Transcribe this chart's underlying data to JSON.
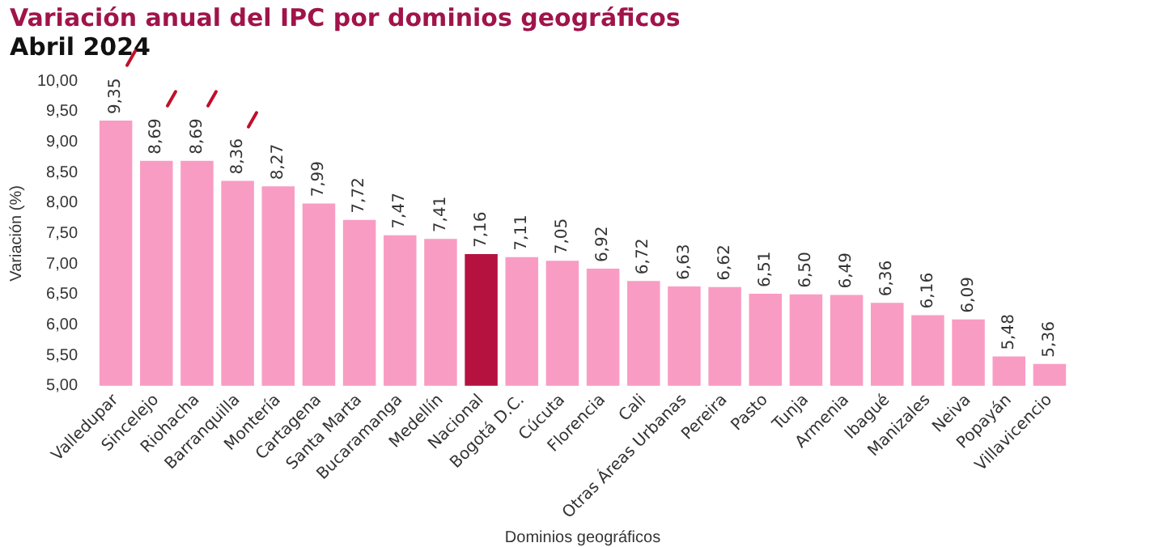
{
  "chart_data": {
    "type": "bar",
    "title": "Variación anual del IPC por dominios geográficos",
    "subtitle": "Abril 2024",
    "xlabel": "Dominios geográficos",
    "ylabel": "Variación (%)",
    "categories": [
      "Valledupar",
      "Sincelejo",
      "Riohacha",
      "Barranquilla",
      "Montería",
      "Cartagena",
      "Santa Marta",
      "Bucaramanga",
      "Medellín",
      "Nacional",
      "Bogotá D.C.",
      "Cúcuta",
      "Florencia",
      "Cali",
      "Otras Áreas Urbanas",
      "Pereira",
      "Pasto",
      "Tunja",
      "Armenia",
      "Ibagué",
      "Manizales",
      "Neiva",
      "Popayán",
      "Villavicencio"
    ],
    "values": [
      9.35,
      8.69,
      8.69,
      8.36,
      8.27,
      7.99,
      7.72,
      7.47,
      7.41,
      7.16,
      7.11,
      7.05,
      6.92,
      6.72,
      6.63,
      6.62,
      6.51,
      6.5,
      6.49,
      6.36,
      6.16,
      6.09,
      5.48,
      5.36
    ],
    "colors": [
      "#f99cc4",
      "#f99cc4",
      "#f99cc4",
      "#f99cc4",
      "#f99cc4",
      "#f99cc4",
      "#f99cc4",
      "#f99cc4",
      "#f99cc4",
      "#b5123f",
      "#f99cc4",
      "#f99cc4",
      "#f99cc4",
      "#f99cc4",
      "#f99cc4",
      "#f99cc4",
      "#f99cc4",
      "#f99cc4",
      "#f99cc4",
      "#f99cc4",
      "#f99cc4",
      "#f99cc4",
      "#f99cc4",
      "#f99cc4"
    ],
    "ylim": [
      5,
      10
    ],
    "yticks": [
      {
        "value": 5,
        "label": "5,00"
      },
      {
        "value": 5.5,
        "label": "5,50"
      },
      {
        "value": 6,
        "label": "6,00"
      },
      {
        "value": 6.5,
        "label": "6,50"
      },
      {
        "value": 7,
        "label": "7,00"
      },
      {
        "value": 7.5,
        "label": "7,50"
      },
      {
        "value": 8,
        "label": "8,00"
      },
      {
        "value": 8.5,
        "label": "8,50"
      },
      {
        "value": 9,
        "label": "9,00"
      },
      {
        "value": 9.5,
        "label": "9,50"
      },
      {
        "value": 10,
        "label": "10,00"
      }
    ],
    "value_labels": [
      "9,35",
      "8,69",
      "8,69",
      "8,36",
      "8,27",
      "7,99",
      "7,72",
      "7,47",
      "7,41",
      "7,16",
      "7,11",
      "7,05",
      "6,92",
      "6,72",
      "6,63",
      "6,62",
      "6,51",
      "6,50",
      "6,49",
      "6,36",
      "6,16",
      "6,09",
      "5,48",
      "5,36"
    ],
    "grid": false,
    "legend": false
  }
}
